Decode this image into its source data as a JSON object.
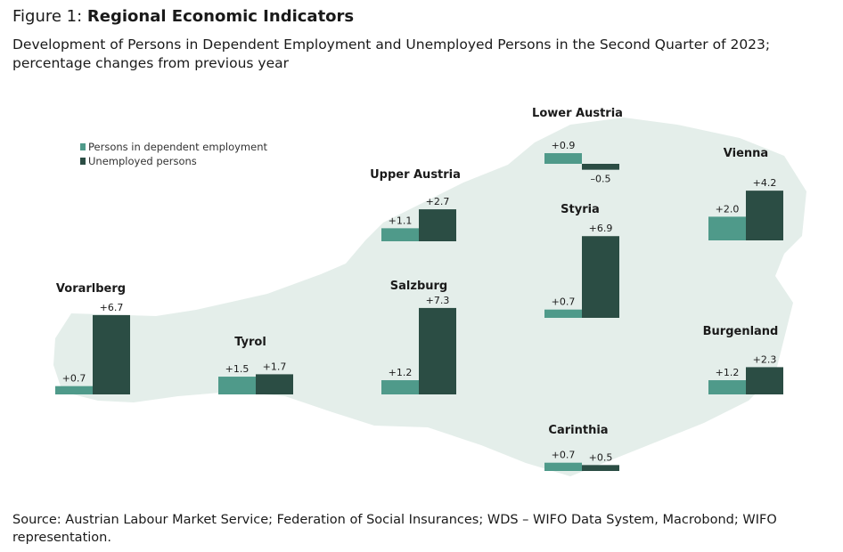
{
  "figure": {
    "label": "Figure 1: ",
    "title": "Regional Economic Indicators",
    "subtitle": "Development of Persons in Dependent Employment and Unemployed Persons in the Second Quarter of 2023; percentage changes from previous year",
    "source": "Source: Austrian Labour Market Service; Federation of Social Insurances; WDS – WIFO Data System, Macrobond; WIFO representation."
  },
  "chart_data": {
    "type": "bar",
    "series": [
      {
        "name": "Persons in dependent employment",
        "color": "#4f9a8a"
      },
      {
        "name": "Unemployed persons",
        "color": "#2b4d44"
      }
    ],
    "regions": [
      {
        "name": "Vorarlberg",
        "values": [
          0.7,
          6.7
        ],
        "labels": [
          "+0.7",
          "+6.7"
        ]
      },
      {
        "name": "Tyrol",
        "values": [
          1.5,
          1.7
        ],
        "labels": [
          "+1.5",
          "+1.7"
        ]
      },
      {
        "name": "Salzburg",
        "values": [
          1.2,
          7.3
        ],
        "labels": [
          "+1.2",
          "+7.3"
        ]
      },
      {
        "name": "Upper Austria",
        "values": [
          1.1,
          2.7
        ],
        "labels": [
          "+1.1",
          "+2.7"
        ]
      },
      {
        "name": "Lower Austria",
        "values": [
          0.9,
          -0.5
        ],
        "labels": [
          "+0.9",
          "–0.5"
        ]
      },
      {
        "name": "Vienna",
        "values": [
          2.0,
          4.2
        ],
        "labels": [
          "+2.0",
          "+4.2"
        ]
      },
      {
        "name": "Styria",
        "values": [
          0.7,
          6.9
        ],
        "labels": [
          "+0.7",
          "+6.9"
        ]
      },
      {
        "name": "Burgenland",
        "values": [
          1.2,
          2.3
        ],
        "labels": [
          "+1.2",
          "+2.3"
        ]
      },
      {
        "name": "Carinthia",
        "values": [
          0.7,
          0.5
        ],
        "labels": [
          "+0.7",
          "+0.5"
        ]
      }
    ],
    "background_color": "#e4eeea"
  }
}
